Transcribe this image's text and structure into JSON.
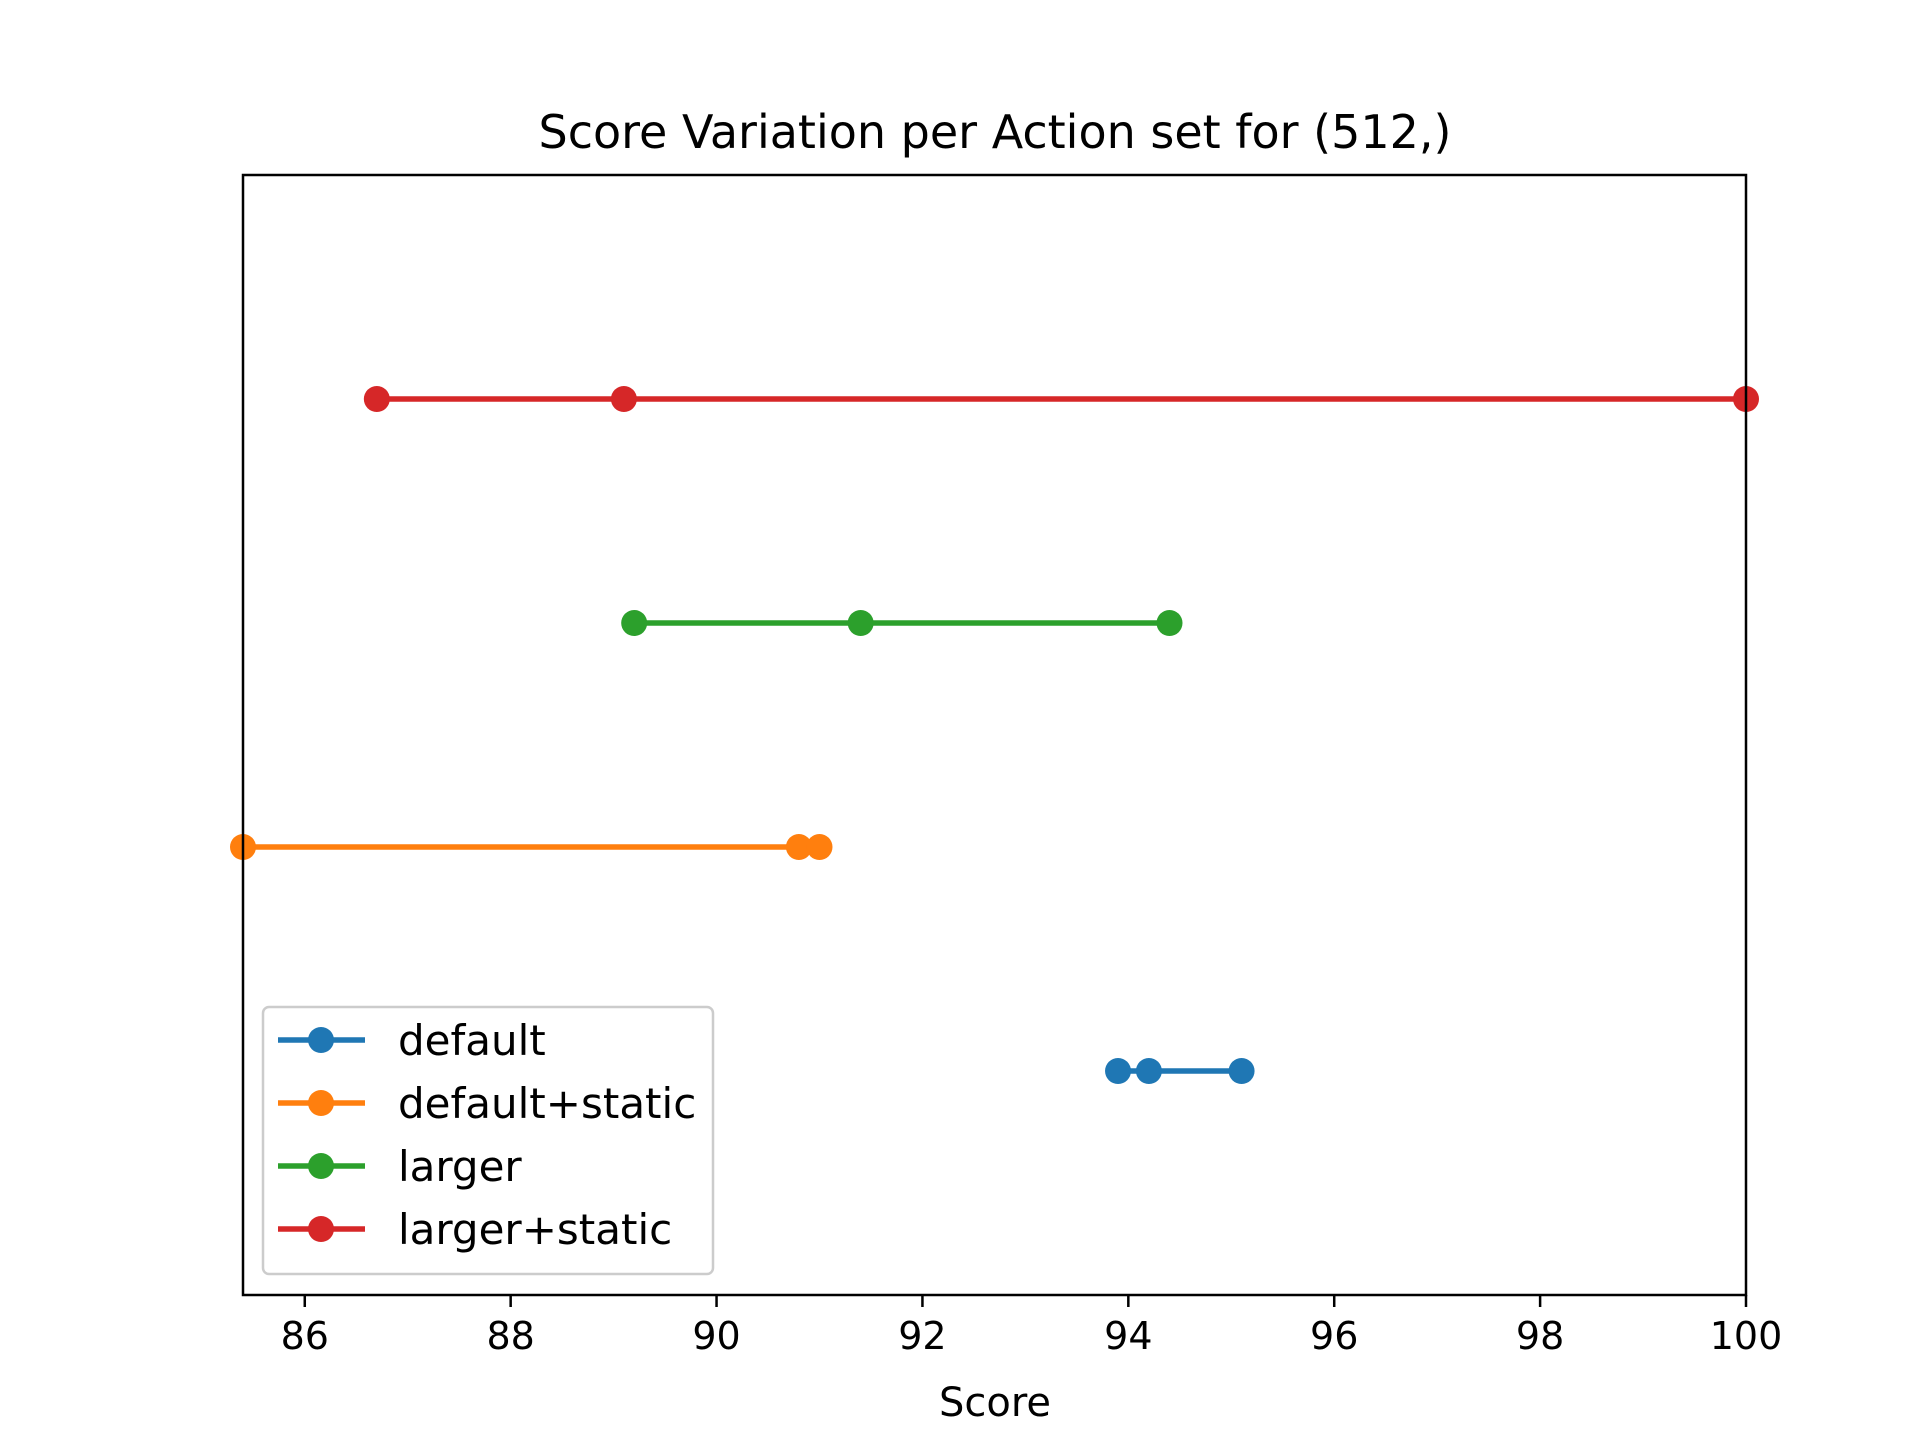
{
  "chart_data": {
    "type": "line",
    "title": "Score Variation per Action set for (512,)",
    "xlabel": "Score",
    "ylabel": "",
    "xlim": [
      85.4,
      100
    ],
    "xticks": [
      "86",
      "88",
      "90",
      "92",
      "94",
      "96",
      "98",
      "100"
    ],
    "grid": false,
    "legend_position": "lower-left",
    "series": [
      {
        "name": "default",
        "color": "#1f77b4",
        "level": 0,
        "values": [
          93.9,
          94.2,
          95.1
        ]
      },
      {
        "name": "default+static",
        "color": "#ff7f0e",
        "level": 1,
        "values": [
          85.4,
          90.8,
          91.0
        ]
      },
      {
        "name": "larger",
        "color": "#2ca02c",
        "level": 2,
        "values": [
          89.2,
          91.4,
          94.4
        ]
      },
      {
        "name": "larger+static",
        "color": "#d62728",
        "level": 3,
        "values": [
          86.7,
          89.1,
          100.0
        ]
      }
    ]
  }
}
